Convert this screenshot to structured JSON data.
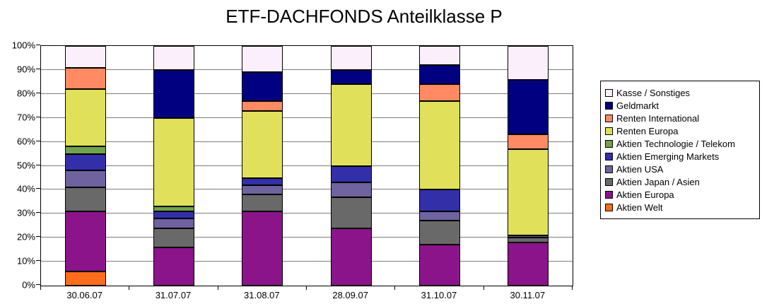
{
  "title": "ETF-DACHFONDS Anteilklasse P",
  "chart_data": {
    "type": "bar",
    "stacked": true,
    "title": "ETF-DACHFONDS Anteilklasse P",
    "xlabel": "",
    "ylabel": "",
    "ylim": [
      0,
      100
    ],
    "grid": true,
    "legend_position": "right",
    "categories": [
      "30.06.07",
      "31.07.07",
      "31.08.07",
      "28.09.07",
      "31.10.07",
      "30.11.07"
    ],
    "y_ticks": [
      "0%",
      "10%",
      "20%",
      "30%",
      "40%",
      "50%",
      "60%",
      "70%",
      "80%",
      "90%",
      "100%"
    ],
    "stack_order_note": "series listed bottom-to-top of stack; legend shows reverse order",
    "series": [
      {
        "name": "Aktien Welt",
        "color": "#FF6D1C",
        "values": [
          6,
          0,
          0,
          0,
          0,
          0
        ]
      },
      {
        "name": "Aktien Europa",
        "color": "#8B148B",
        "values": [
          25,
          16,
          31,
          24,
          17,
          18
        ]
      },
      {
        "name": "Aktien Japan / Asien",
        "color": "#696969",
        "values": [
          10,
          8,
          7,
          13,
          10,
          2
        ]
      },
      {
        "name": "Aktien USA",
        "color": "#6E629F",
        "values": [
          7,
          4,
          4,
          6,
          4,
          1
        ]
      },
      {
        "name": "Aktien Emerging Markets",
        "color": "#332FA8",
        "values": [
          7,
          3,
          3,
          7,
          9,
          0
        ]
      },
      {
        "name": "Aktien Technologie / Telekom",
        "color": "#70A34C",
        "values": [
          3,
          2,
          0,
          0,
          0,
          0
        ]
      },
      {
        "name": "Renten Europa",
        "color": "#E0E05A",
        "values": [
          24,
          37,
          28,
          34,
          37,
          36
        ]
      },
      {
        "name": "Renten International",
        "color": "#FF8A63",
        "values": [
          9,
          0,
          4,
          0,
          7,
          6
        ]
      },
      {
        "name": "Geldmarkt",
        "color": "#000080",
        "values": [
          0,
          20,
          12,
          6,
          8,
          23
        ]
      },
      {
        "name": "Kasse / Sonstiges",
        "color": "#FCEFFC",
        "values": [
          9,
          10,
          11,
          10,
          8,
          14
        ]
      }
    ]
  }
}
